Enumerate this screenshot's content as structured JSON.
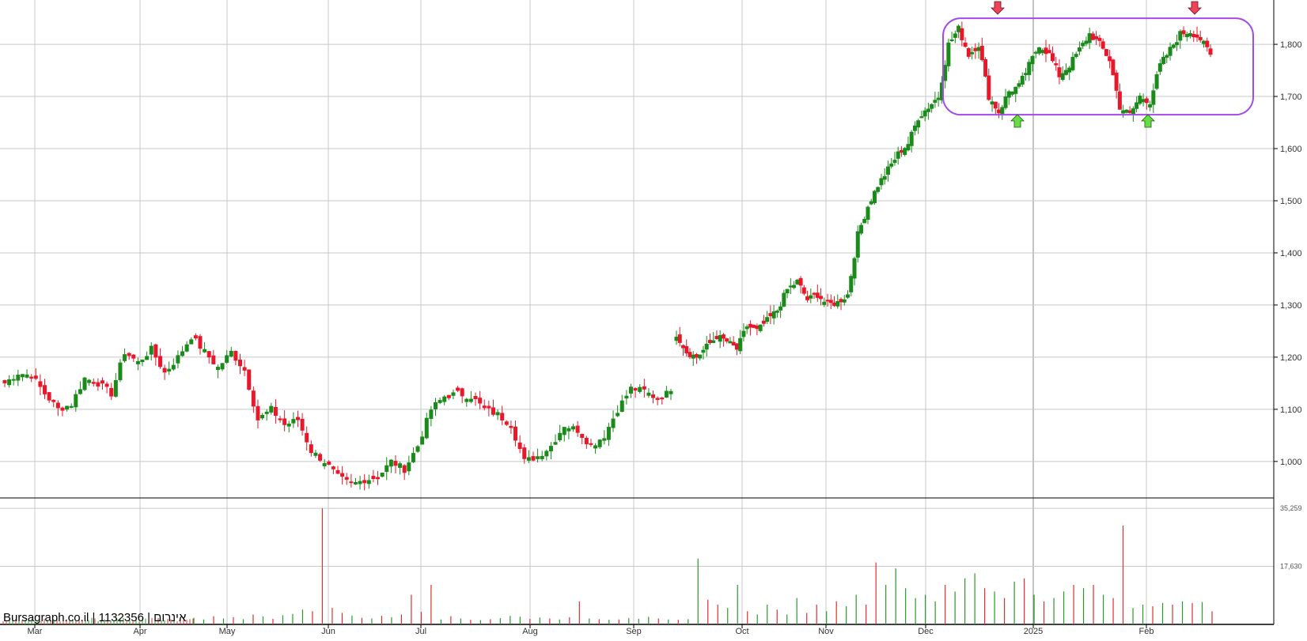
{
  "watermark": "Bursagraph.co.il | 1132356 | אינרום",
  "colors": {
    "up": "#1a8a1a",
    "down": "#e8172a",
    "grid": "#c8c8c8",
    "axis": "#000000",
    "box": "#a44ae8",
    "arrow_up": "#66dd44",
    "arrow_down": "#ee4455",
    "vol_up": "#2a9a2a",
    "vol_down": "#e03030"
  },
  "chart_data": {
    "type": "candlestick",
    "price_axis": {
      "ticks": [
        1000,
        1100,
        1200,
        1300,
        1400,
        1500,
        1600,
        1700,
        1800
      ],
      "tick_labels": [
        "1,000",
        "1,100",
        "1,200",
        "1,300",
        "1,400",
        "1,500",
        "1,600",
        "1,700",
        "1,800"
      ],
      "range": [
        930,
        1885
      ]
    },
    "volume_axis": {
      "ticks": [
        17630,
        35259
      ],
      "tick_labels": [
        "17,630",
        "35,259"
      ],
      "range": [
        0,
        36000
      ]
    },
    "month_labels": [
      "Mar",
      "Apr",
      "May",
      "Jun",
      "Jul",
      "Aug",
      "Sep",
      "Oct",
      "Nov",
      "Dec",
      "2025",
      "Feb"
    ],
    "segments": [
      {
        "points": [
          1150,
          1170,
          1165,
          1130,
          1100,
          1110,
          1160,
          1150,
          1130,
          1210,
          1190,
          1215,
          1170,
          1200,
          1240,
          1210,
          1180,
          1210,
          1175,
          1080,
          1100,
          1070,
          1080,
          1020,
          1000,
          970,
          955,
          965,
          970,
          1000,
          985,
          1030,
          1100,
          1125,
          1130,
          1125,
          1100,
          1090,
          1070,
          1000,
          1010,
          1030,
          1070,
          1060,
          1030,
          1050,
          1100,
          1140,
          1135,
          1120,
          1135
        ]
      },
      {
        "points": [
          1245,
          1210,
          1200,
          1220,
          1240,
          1230,
          1215,
          1260,
          1250,
          1270,
          1290,
          1330,
          1345,
          1310,
          1320,
          1300,
          1305,
          1320,
          1435,
          1490,
          1530,
          1560,
          1590,
          1610,
          1660,
          1680,
          1700,
          1800,
          1830,
          1780,
          1800,
          1700,
          1670,
          1710,
          1720,
          1760,
          1800,
          1780,
          1740,
          1760,
          1790,
          1820,
          1800,
          1770,
          1680,
          1665,
          1700,
          1690,
          1760,
          1790,
          1820,
          1825,
          1810,
          1780
        ]
      }
    ],
    "volume": [
      {
        "v": 2000,
        "u": 1
      },
      {
        "v": 1500,
        "u": 1
      },
      {
        "v": 2500,
        "u": 0
      },
      {
        "v": 1800,
        "u": 1
      },
      {
        "v": 2200,
        "u": 0
      },
      {
        "v": 1600,
        "u": 1
      },
      {
        "v": 3000,
        "u": 0
      },
      {
        "v": 2400,
        "u": 1
      },
      {
        "v": 1700,
        "u": 0
      },
      {
        "v": 2800,
        "u": 1
      },
      {
        "v": 3200,
        "u": 1
      },
      {
        "v": 4500,
        "u": 1
      },
      {
        "v": 4000,
        "u": 0
      },
      {
        "v": 35259,
        "u": 0
      },
      {
        "v": 5000,
        "u": 0
      },
      {
        "v": 3500,
        "u": 0
      },
      {
        "v": 2700,
        "u": 1
      },
      {
        "v": 2000,
        "u": 0
      },
      {
        "v": 1800,
        "u": 1
      },
      {
        "v": 2600,
        "u": 0
      },
      {
        "v": 2200,
        "u": 1
      },
      {
        "v": 3000,
        "u": 0
      },
      {
        "v": 9000,
        "u": 0
      },
      {
        "v": 3800,
        "u": 0
      },
      {
        "v": 12000,
        "u": 0
      },
      {
        "v": 1500,
        "u": 1
      },
      {
        "v": 2500,
        "u": 0
      },
      {
        "v": 1800,
        "u": 1
      },
      {
        "v": 1400,
        "u": 0
      },
      {
        "v": 1300,
        "u": 1
      },
      {
        "v": 1600,
        "u": 0
      },
      {
        "v": 1900,
        "u": 1
      },
      {
        "v": 2600,
        "u": 1
      },
      {
        "v": 2300,
        "u": 1
      },
      {
        "v": 1700,
        "u": 0
      },
      {
        "v": 2100,
        "u": 1
      },
      {
        "v": 1800,
        "u": 0
      },
      {
        "v": 1500,
        "u": 1
      },
      {
        "v": 2200,
        "u": 0
      },
      {
        "v": 7000,
        "u": 0
      },
      {
        "v": 1800,
        "u": 1
      },
      {
        "v": 1600,
        "u": 0
      },
      {
        "v": 1400,
        "u": 1
      },
      {
        "v": 1500,
        "u": 0
      },
      {
        "v": 1900,
        "u": 1
      },
      {
        "v": 1700,
        "u": 1
      },
      {
        "v": 2300,
        "u": 1
      },
      {
        "v": 1800,
        "u": 0
      },
      {
        "v": 1500,
        "u": 1
      },
      {
        "v": 1400,
        "u": 0
      },
      {
        "v": 1600,
        "u": 1
      },
      {
        "v": 20000,
        "u": 1
      },
      {
        "v": 7500,
        "u": 0
      },
      {
        "v": 6000,
        "u": 0
      },
      {
        "v": 5000,
        "u": 1
      },
      {
        "v": 12000,
        "u": 1
      },
      {
        "v": 4000,
        "u": 0
      },
      {
        "v": 3000,
        "u": 1
      },
      {
        "v": 6000,
        "u": 1
      },
      {
        "v": 4500,
        "u": 0
      },
      {
        "v": 3000,
        "u": 1
      },
      {
        "v": 8000,
        "u": 1
      },
      {
        "v": 3500,
        "u": 0
      },
      {
        "v": 6000,
        "u": 0
      },
      {
        "v": 4000,
        "u": 1
      },
      {
        "v": 7000,
        "u": 0
      },
      {
        "v": 5500,
        "u": 1
      },
      {
        "v": 9000,
        "u": 1
      },
      {
        "v": 6000,
        "u": 0
      },
      {
        "v": 18800,
        "u": 0
      },
      {
        "v": 12000,
        "u": 1
      },
      {
        "v": 17000,
        "u": 1
      },
      {
        "v": 11000,
        "u": 1
      },
      {
        "v": 8000,
        "u": 1
      },
      {
        "v": 9000,
        "u": 1
      },
      {
        "v": 7000,
        "u": 1
      },
      {
        "v": 12000,
        "u": 0
      },
      {
        "v": 10000,
        "u": 1
      },
      {
        "v": 14000,
        "u": 1
      },
      {
        "v": 15500,
        "u": 1
      },
      {
        "v": 11000,
        "u": 0
      },
      {
        "v": 10000,
        "u": 1
      },
      {
        "v": 8000,
        "u": 0
      },
      {
        "v": 13000,
        "u": 1
      },
      {
        "v": 14000,
        "u": 0
      },
      {
        "v": 9000,
        "u": 1
      },
      {
        "v": 7000,
        "u": 0
      },
      {
        "v": 8000,
        "u": 1
      },
      {
        "v": 10000,
        "u": 1
      },
      {
        "v": 12000,
        "u": 0
      },
      {
        "v": 11000,
        "u": 1
      },
      {
        "v": 12000,
        "u": 0
      },
      {
        "v": 9000,
        "u": 1
      },
      {
        "v": 8000,
        "u": 0
      },
      {
        "v": 30000,
        "u": 0
      },
      {
        "v": 5000,
        "u": 1
      },
      {
        "v": 6000,
        "u": 1
      },
      {
        "v": 5500,
        "u": 0
      },
      {
        "v": 6500,
        "u": 1
      },
      {
        "v": 6000,
        "u": 0
      },
      {
        "v": 7000,
        "u": 1
      },
      {
        "v": 6500,
        "u": 0
      },
      {
        "v": 6800,
        "u": 1
      },
      {
        "v": 4000,
        "u": 0
      }
    ],
    "annotations": {
      "resistance_box": {
        "x_start_index": 71,
        "x_end_index": 106,
        "y_range": [
          1665,
          1850
        ]
      },
      "down_arrows": [
        {
          "index": 82,
          "price": 1830
        },
        {
          "index": 104,
          "price": 1830
        }
      ],
      "up_arrows": [
        {
          "index": 86,
          "price": 1655
        },
        {
          "index": 97,
          "price": 1655
        }
      ]
    },
    "grid": true
  }
}
